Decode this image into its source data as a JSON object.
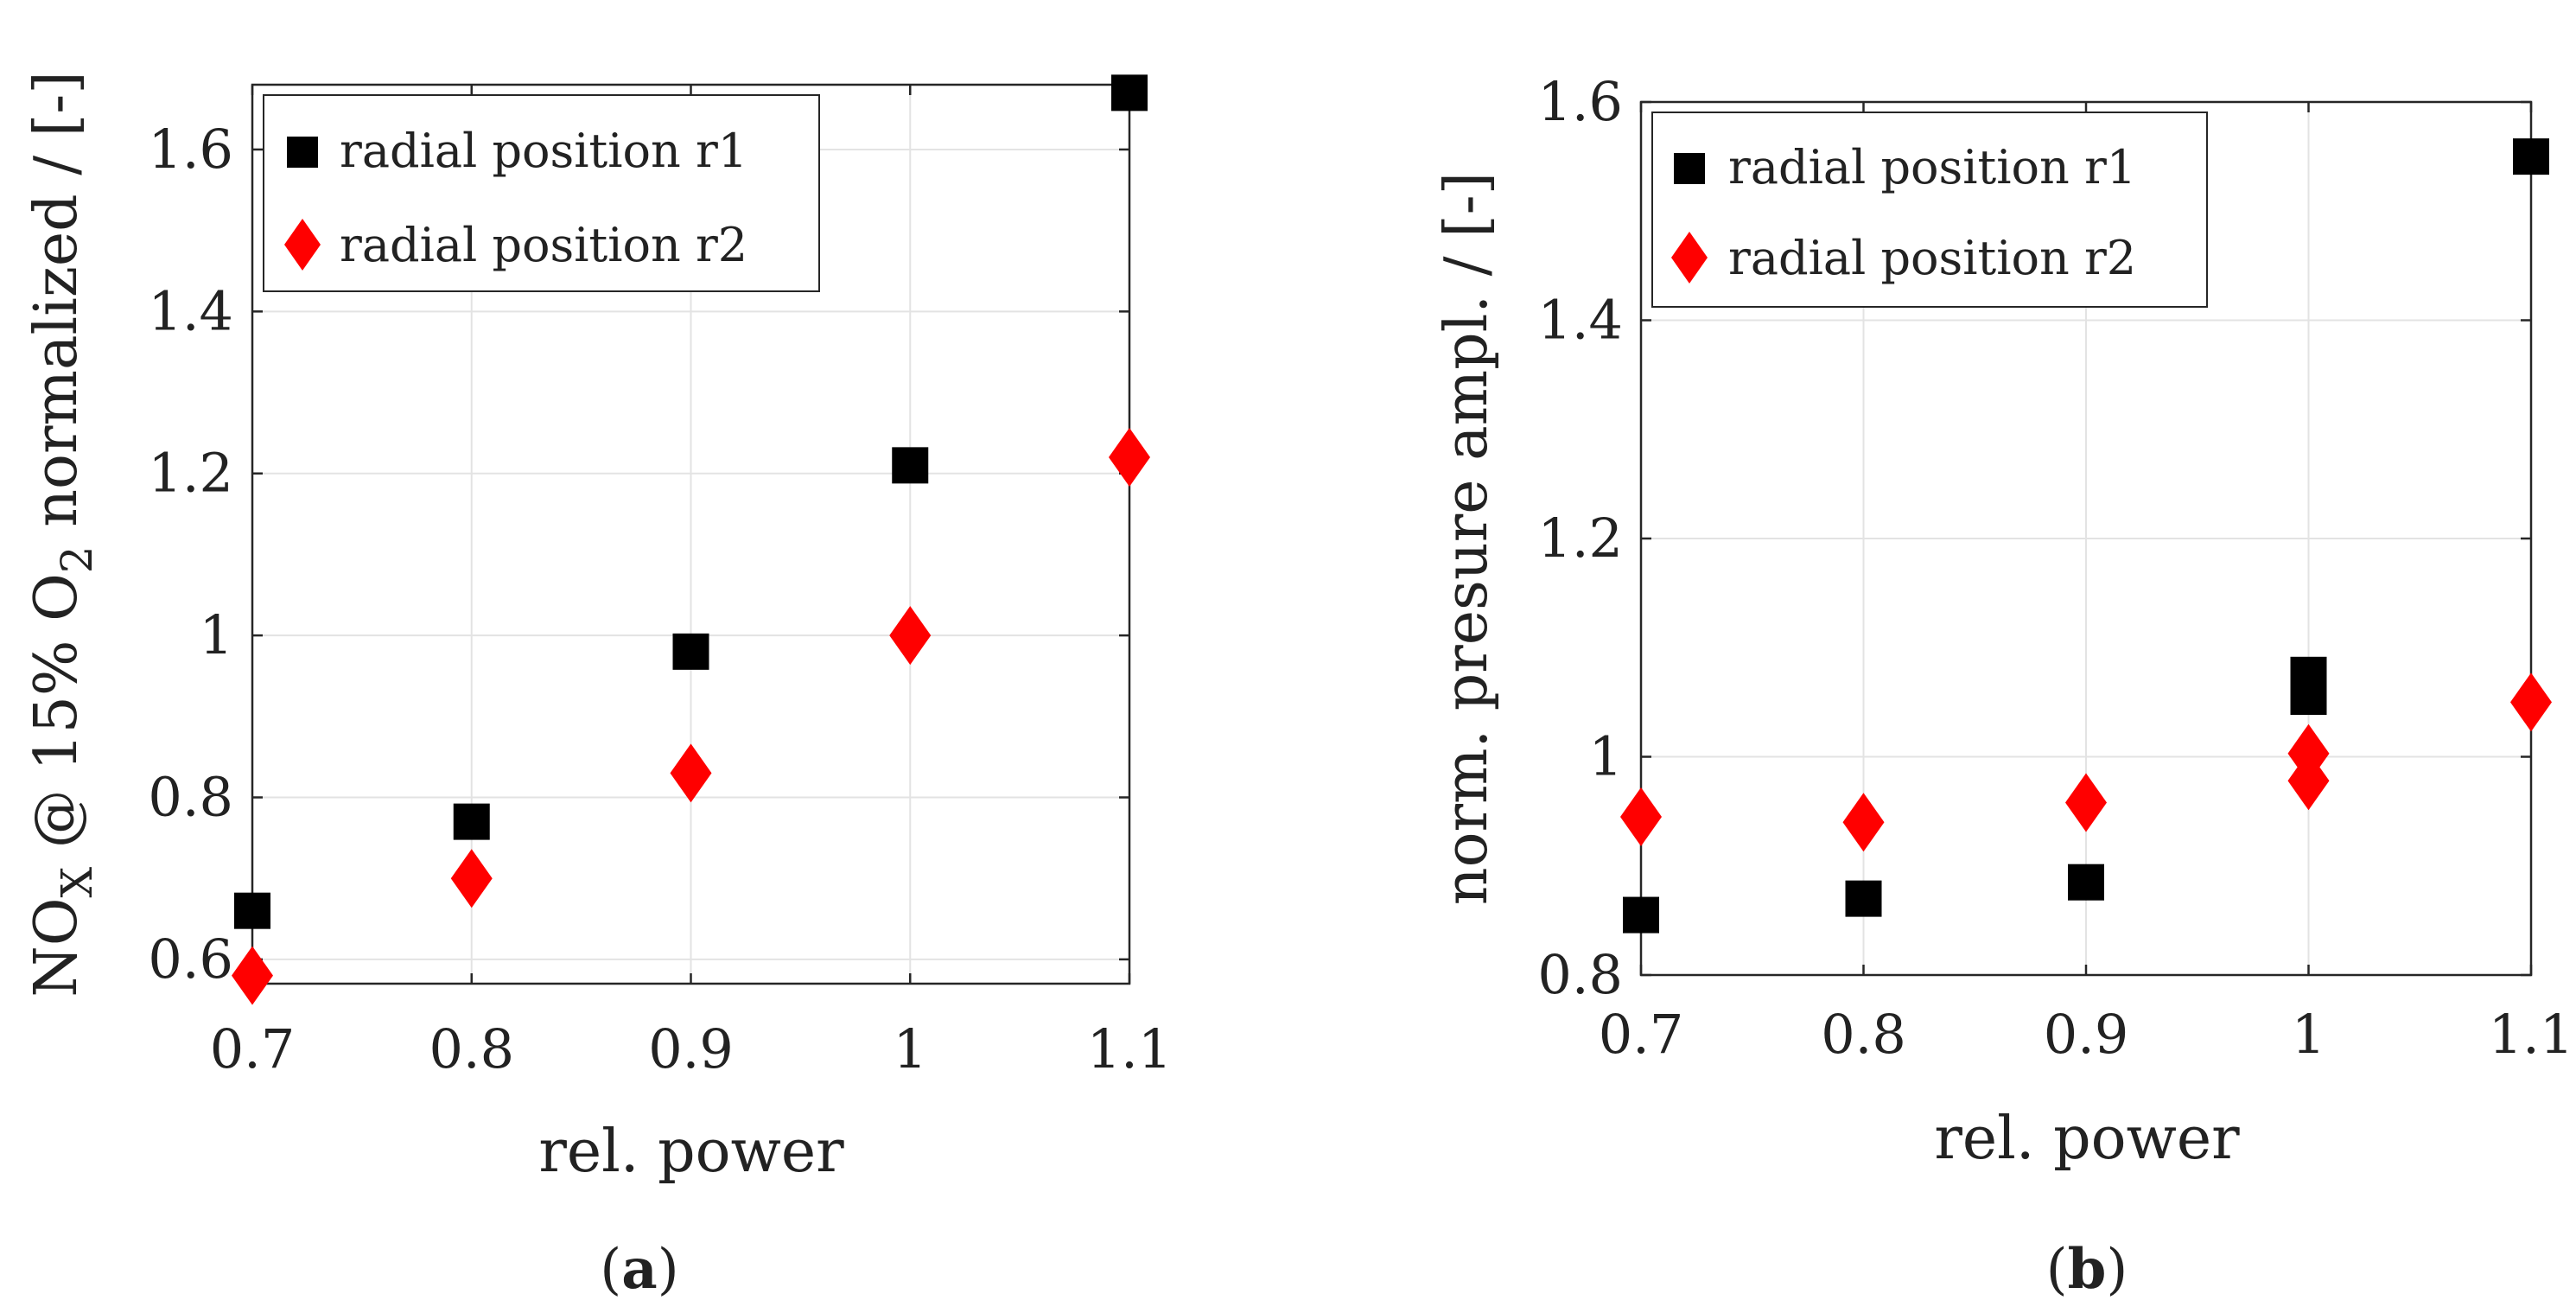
{
  "chart_data": [
    {
      "id": "a",
      "type": "scatter",
      "xlabel": "rel. power",
      "ylabel": "NOX @ 15% O2 normalized / [-]",
      "ylabel_parts": {
        "a": "NO",
        "sub1": "X",
        "b": " @ 15% O",
        "sub2": "2",
        "c": " normalized / [-]"
      },
      "xlim": [
        0.7,
        1.1
      ],
      "ylim": [
        0.57,
        1.68
      ],
      "xticks": [
        "0.7",
        "0.8",
        "0.9",
        "1",
        "1.1"
      ],
      "yticks": [
        "0.6",
        "0.8",
        "1",
        "1.2",
        "1.4",
        "1.6"
      ],
      "grid": true,
      "legend_position": "top-left",
      "panel_label": {
        "open": "(",
        "letter": "a",
        "close": ")"
      },
      "series": [
        {
          "name": "radial position r1",
          "marker": "square",
          "color": "#000000",
          "x": [
            0.7,
            0.8,
            0.9,
            1.0,
            1.1
          ],
          "y": [
            0.66,
            0.77,
            0.98,
            1.21,
            1.67
          ]
        },
        {
          "name": "radial position r2",
          "marker": "diamond",
          "color": "#ff0000",
          "x": [
            0.7,
            0.8,
            0.9,
            1.0,
            1.1
          ],
          "y": [
            0.58,
            0.7,
            0.83,
            1.0,
            1.22
          ]
        }
      ]
    },
    {
      "id": "b",
      "type": "scatter",
      "xlabel": "rel. power",
      "ylabel": "norm. presure ampl. / [-]",
      "xlim": [
        0.7,
        1.1
      ],
      "ylim": [
        0.8,
        1.6
      ],
      "xticks": [
        "0.7",
        "0.8",
        "0.9",
        "1",
        "1.1"
      ],
      "yticks": [
        "0.8",
        "1",
        "1.2",
        "1.4",
        "1.6"
      ],
      "grid": true,
      "legend_position": "top-left",
      "panel_label": {
        "open": "(",
        "letter": "b",
        "close": ")"
      },
      "series": [
        {
          "name": "radial position r1",
          "marker": "square",
          "color": "#000000",
          "x": [
            0.7,
            0.8,
            0.9,
            1.0,
            1.0,
            1.1
          ],
          "y": [
            0.855,
            0.87,
            0.885,
            1.055,
            1.075,
            1.55
          ]
        },
        {
          "name": "radial position r2",
          "marker": "diamond",
          "color": "#ff0000",
          "x": [
            0.7,
            0.8,
            0.9,
            1.0,
            1.0,
            1.1
          ],
          "y": [
            0.945,
            0.94,
            0.958,
            0.978,
            1.003,
            1.05
          ]
        }
      ]
    }
  ]
}
